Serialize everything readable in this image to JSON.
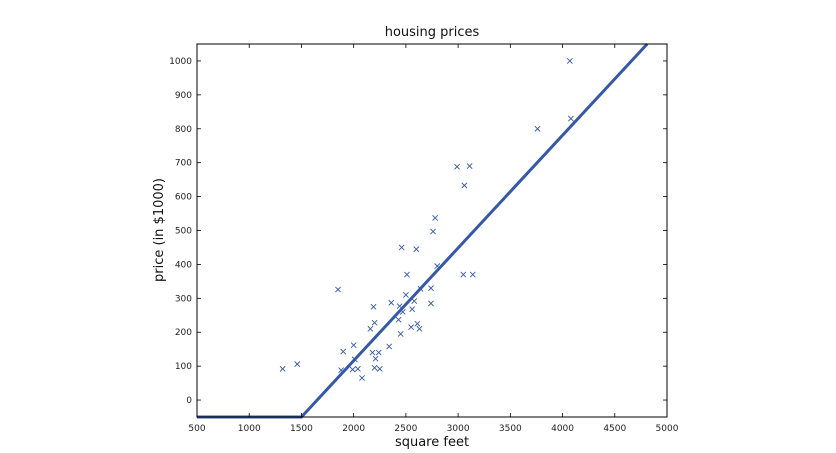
{
  "chart_data": {
    "type": "scatter",
    "title": "housing prices",
    "xlabel": "square feet",
    "ylabel": "price (in $1000)",
    "xlim": [
      500,
      5000
    ],
    "ylim": [
      -50,
      1050
    ],
    "xticks": [
      500,
      1000,
      1500,
      2000,
      2500,
      3000,
      3500,
      4000,
      4500,
      5000
    ],
    "yticks": [
      0,
      100,
      200,
      300,
      400,
      500,
      600,
      700,
      800,
      900,
      1000
    ],
    "grid": false,
    "colors": {
      "series": "#3558a8",
      "axis": "#000000"
    },
    "series": [
      {
        "kind": "scatter",
        "marker": "x",
        "points": [
          [
            1320,
            92
          ],
          [
            1460,
            106
          ],
          [
            1850,
            326
          ],
          [
            1880,
            88
          ],
          [
            1900,
            143
          ],
          [
            1990,
            90
          ],
          [
            2000,
            162
          ],
          [
            2010,
            120
          ],
          [
            2040,
            92
          ],
          [
            2080,
            65
          ],
          [
            2160,
            210
          ],
          [
            2180,
            140
          ],
          [
            2190,
            275
          ],
          [
            2200,
            95
          ],
          [
            2200,
            228
          ],
          [
            2210,
            122
          ],
          [
            2240,
            140
          ],
          [
            2250,
            92
          ],
          [
            2340,
            158
          ],
          [
            2360,
            287
          ],
          [
            2430,
            237
          ],
          [
            2440,
            277
          ],
          [
            2450,
            195
          ],
          [
            2460,
            450
          ],
          [
            2470,
            260
          ],
          [
            2500,
            310
          ],
          [
            2510,
            370
          ],
          [
            2550,
            215
          ],
          [
            2560,
            268
          ],
          [
            2580,
            292
          ],
          [
            2600,
            445
          ],
          [
            2610,
            225
          ],
          [
            2630,
            210
          ],
          [
            2640,
            328
          ],
          [
            2740,
            285
          ],
          [
            2740,
            330
          ],
          [
            2760,
            497
          ],
          [
            2780,
            537
          ],
          [
            2800,
            395
          ],
          [
            2990,
            688
          ],
          [
            3050,
            370
          ],
          [
            3060,
            633
          ],
          [
            3110,
            690
          ],
          [
            3140,
            370
          ],
          [
            3760,
            800
          ],
          [
            4070,
            1000
          ],
          [
            4080,
            830
          ]
        ]
      },
      {
        "kind": "line",
        "points": [
          [
            500,
            -50
          ],
          [
            1500,
            -50
          ],
          [
            4810,
            1050
          ]
        ]
      }
    ]
  }
}
